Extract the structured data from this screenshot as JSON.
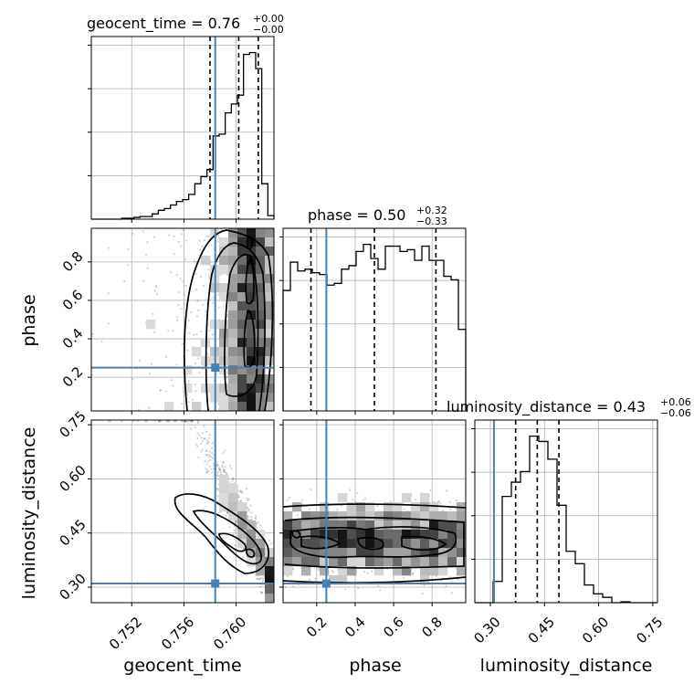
{
  "chart_data": {
    "type": "corner",
    "parameters": [
      "geocent_time",
      "phase",
      "luminosity_distance"
    ],
    "axis_labels": {
      "geocent_time": "geocent_time",
      "phase": "phase",
      "luminosity_distance": "luminosity_distance"
    },
    "ranges": {
      "geocent_time": [
        0.7489,
        0.7629
      ],
      "phase": [
        0.025,
        0.975
      ],
      "luminosity_distance": [
        0.257,
        0.763
      ]
    },
    "truths": {
      "geocent_time": 0.7584,
      "phase": 0.25,
      "luminosity_distance": 0.31
    },
    "truth_color": "#4682b4",
    "titles": {
      "geocent_time": {
        "name": "geocent_time",
        "median": "0.76",
        "plus": "+0.00",
        "minus": "−0.00"
      },
      "phase": {
        "name": "phase",
        "median": "0.50",
        "plus": "+0.32",
        "minus": "−0.33"
      },
      "luminosity_distance": {
        "name": "luminosity_distance",
        "median": "0.43",
        "plus": "+0.06",
        "minus": "−0.06"
      }
    },
    "quantiles": {
      "geocent_time": [
        0.758,
        0.7602,
        0.7617
      ],
      "phase": [
        0.17,
        0.5,
        0.82
      ],
      "luminosity_distance": [
        0.37,
        0.43,
        0.49
      ]
    },
    "ticks": {
      "geocent_time": [
        "0.752",
        "0.756",
        "0.760"
      ],
      "phase": [
        "0.2",
        "0.4",
        "0.6",
        "0.8"
      ],
      "luminosity_distance": [
        "0.30",
        "0.45",
        "0.60",
        "0.75"
      ]
    },
    "hist_1d": {
      "geocent_time": [
        0.0,
        0.0,
        0.0,
        0.0,
        0.0,
        0.005,
        0.005,
        0.01,
        0.015,
        0.015,
        0.03,
        0.05,
        0.06,
        0.08,
        0.1,
        0.11,
        0.14,
        0.2,
        0.24,
        0.28,
        0.47,
        0.48,
        0.6,
        0.65,
        0.7,
        0.93,
        0.94,
        0.85,
        0.2,
        0.02
      ],
      "phase": [
        0.68,
        0.84,
        0.79,
        0.8,
        0.78,
        0.77,
        0.71,
        0.72,
        0.8,
        0.82,
        0.9,
        0.94,
        0.86,
        0.8,
        0.93,
        0.93,
        0.9,
        0.91,
        0.85,
        0.93,
        0.85,
        0.85,
        0.76,
        0.74,
        0.46
      ],
      "luminosity_distance": [
        0.0,
        0.0,
        0.12,
        0.6,
        0.68,
        0.74,
        0.94,
        0.91,
        0.81,
        0.55,
        0.29,
        0.22,
        0.1,
        0.05,
        0.03,
        0.0,
        0.005,
        0.0,
        0.0,
        0.0
      ]
    },
    "grid": true
  }
}
